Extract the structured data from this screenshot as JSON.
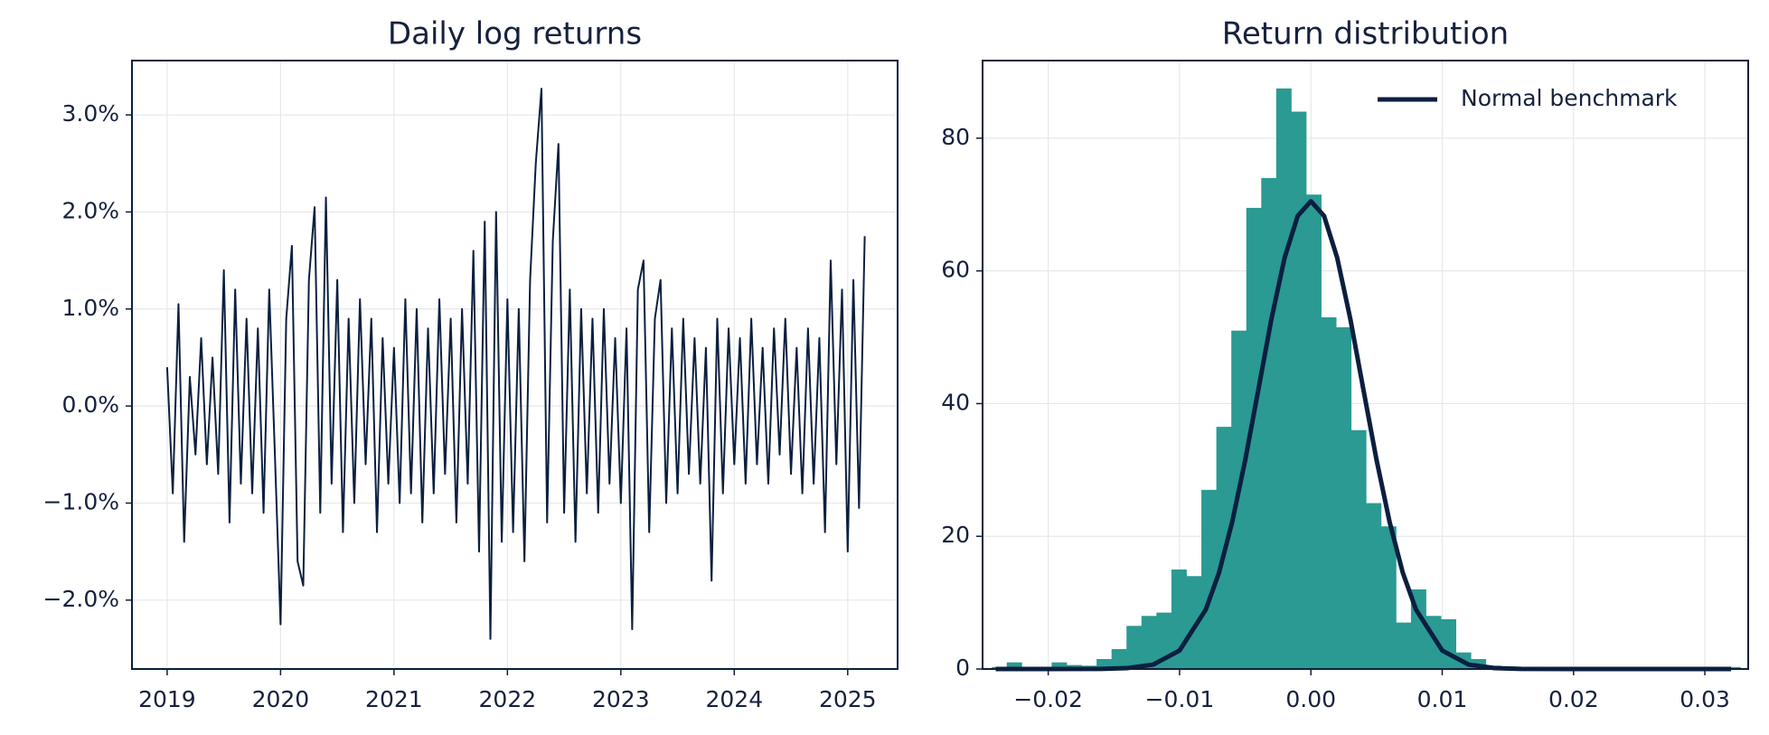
{
  "chart_data": [
    {
      "type": "line",
      "title": "Daily log returns",
      "color": "#0b1f3f",
      "x": [
        2019,
        2019.05,
        2019.1,
        2019.15,
        2019.2,
        2019.25,
        2019.3,
        2019.35,
        2019.4,
        2019.45,
        2019.5,
        2019.55,
        2019.6,
        2019.65,
        2019.7,
        2019.75,
        2019.8,
        2019.85,
        2019.9,
        2019.95,
        2020,
        2020.05,
        2020.1,
        2020.15,
        2020.2,
        2020.25,
        2020.3,
        2020.35,
        2020.4,
        2020.45,
        2020.5,
        2020.55,
        2020.6,
        2020.65,
        2020.7,
        2020.75,
        2020.8,
        2020.85,
        2020.9,
        2020.95,
        2021,
        2021.05,
        2021.1,
        2021.15,
        2021.2,
        2021.25,
        2021.3,
        2021.35,
        2021.4,
        2021.45,
        2021.5,
        2021.55,
        2021.6,
        2021.65,
        2021.7,
        2021.75,
        2021.8,
        2021.85,
        2021.9,
        2021.95,
        2022,
        2022.05,
        2022.1,
        2022.15,
        2022.2,
        2022.25,
        2022.3,
        2022.35,
        2022.4,
        2022.45,
        2022.5,
        2022.55,
        2022.6,
        2022.65,
        2022.7,
        2022.75,
        2022.8,
        2022.85,
        2022.9,
        2022.95,
        2023,
        2023.05,
        2023.1,
        2023.15,
        2023.2,
        2023.25,
        2023.3,
        2023.35,
        2023.4,
        2023.45,
        2023.5,
        2023.55,
        2023.6,
        2023.65,
        2023.7,
        2023.75,
        2023.8,
        2023.85,
        2023.9,
        2023.95,
        2024,
        2024.05,
        2024.1,
        2024.15,
        2024.2,
        2024.25,
        2024.3,
        2024.35,
        2024.4,
        2024.45,
        2024.5,
        2024.55,
        2024.6,
        2024.65,
        2024.7,
        2024.75,
        2024.8,
        2024.85,
        2024.9,
        2024.95,
        2025,
        2025.05,
        2025.1,
        2025.15
      ],
      "values": [
        0.4,
        -0.9,
        1.05,
        -1.4,
        0.3,
        -0.5,
        0.7,
        -0.6,
        0.5,
        -0.7,
        1.4,
        -1.2,
        1.2,
        -0.8,
        0.9,
        -0.9,
        0.8,
        -1.1,
        1.2,
        -0.5,
        -2.25,
        0.9,
        1.65,
        -1.6,
        -1.85,
        1.3,
        2.05,
        -1.1,
        2.15,
        -0.8,
        1.3,
        -1.3,
        0.9,
        -1.0,
        1.1,
        -0.6,
        0.9,
        -1.3,
        0.7,
        -0.8,
        0.6,
        -1.0,
        1.1,
        -0.9,
        1.0,
        -1.2,
        0.8,
        -0.9,
        1.1,
        -0.7,
        0.9,
        -1.2,
        1.0,
        -0.8,
        1.6,
        -1.5,
        1.9,
        -2.4,
        2.0,
        -1.4,
        1.1,
        -1.3,
        1.0,
        -1.6,
        1.3,
        2.5,
        3.27,
        -1.2,
        1.7,
        2.7,
        -1.1,
        1.2,
        -1.4,
        1.0,
        -0.9,
        0.9,
        -1.1,
        1.0,
        -0.8,
        0.7,
        -1.0,
        0.8,
        -2.3,
        1.2,
        1.5,
        -1.3,
        0.9,
        1.3,
        -1.0,
        0.8,
        -0.9,
        0.9,
        -0.7,
        0.7,
        -0.8,
        0.6,
        -1.8,
        0.9,
        -0.9,
        0.8,
        -0.6,
        0.7,
        -0.8,
        0.9,
        -0.6,
        0.6,
        -0.8,
        0.8,
        -0.5,
        0.9,
        -0.7,
        0.6,
        -0.9,
        0.8,
        -0.8,
        0.7,
        -1.3,
        1.5,
        -0.6,
        1.2,
        -1.5,
        1.3,
        -1.05,
        1.75
      ],
      "xlim": [
        2018.69,
        2025.44
      ],
      "xticks": [
        2019,
        2020,
        2021,
        2022,
        2023,
        2024,
        2025
      ],
      "ylim": [
        -2.71,
        3.56
      ],
      "yticks": [
        {
          "value": -2,
          "label": "−2.0%"
        },
        {
          "value": -1,
          "label": "−1.0%"
        },
        {
          "value": 0,
          "label": "0.0%"
        },
        {
          "value": 1,
          "label": "1.0%"
        },
        {
          "value": 2,
          "label": "2.0%"
        },
        {
          "value": 3,
          "label": "3.0%"
        }
      ],
      "grid": true
    },
    {
      "type": "histogram",
      "title": "Return distribution",
      "color": "#2a9a93",
      "bins": [
        -0.0243,
        -0.02316,
        -0.02202,
        -0.02088,
        -0.01974,
        -0.0186,
        -0.01746,
        -0.01632,
        -0.01518,
        -0.01404,
        -0.0129,
        -0.01176,
        -0.01062,
        -0.00948,
        -0.00834,
        -0.0072,
        -0.00606,
        -0.00492,
        -0.00378,
        -0.00264,
        -0.0015,
        -0.00036,
        0.00078,
        0.00192,
        0.00306,
        0.0042,
        0.00534,
        0.00648,
        0.00762,
        0.00876,
        0.0099,
        0.01104,
        0.01218,
        0.01332,
        0.01446,
        0.0156,
        0.01674,
        0.01788,
        0.01902,
        0.02016,
        0.0213,
        0.02244,
        0.02358,
        0.02472,
        0.02586,
        0.027,
        0.02814,
        0.02928,
        0.03042,
        0.03156,
        0.0327
      ],
      "values": [
        0.3,
        1,
        0,
        0.3,
        1,
        0.6,
        0.5,
        1.5,
        3,
        6.5,
        8,
        8.5,
        15,
        14,
        27,
        36.5,
        51,
        69.5,
        74,
        87.5,
        84,
        71.5,
        53,
        51.5,
        36,
        25,
        21.5,
        7,
        12,
        8,
        7.5,
        2.5,
        1.5,
        0.5,
        0.2,
        0,
        0.2,
        0,
        0,
        0.2,
        0,
        0.2,
        0,
        0,
        0.2,
        0,
        0.2,
        0,
        0.2,
        0.3
      ],
      "series": [
        {
          "name": "Normal benchmark",
          "color": "#0b1f3f",
          "x": [
            -0.024,
            -0.02,
            -0.016,
            -0.014,
            -0.012,
            -0.01,
            -0.008,
            -0.007,
            -0.006,
            -0.005,
            -0.004,
            -0.003,
            -0.002,
            -0.001,
            0,
            0.001,
            0.002,
            0.003,
            0.004,
            0.005,
            0.006,
            0.007,
            0.008,
            0.01,
            0.012,
            0.014,
            0.016,
            0.02,
            0.024,
            0.032
          ],
          "values": [
            0,
            0.0002,
            0.018,
            0.13,
            0.67,
            2.79,
            8.97,
            14.5,
            22.1,
            31.5,
            42.1,
            52.8,
            62,
            68.3,
            70.5,
            68.3,
            62,
            52.8,
            42.1,
            31.5,
            22.1,
            14.5,
            8.97,
            2.79,
            0.67,
            0.13,
            0.018,
            0.0002,
            0,
            0
          ]
        }
      ],
      "xlim": [
        -0.025,
        0.0333
      ],
      "xticks": [
        {
          "value": -0.02,
          "label": "−0.02"
        },
        {
          "value": -0.01,
          "label": "−0.01"
        },
        {
          "value": 0,
          "label": "0.00"
        },
        0.01,
        0.02,
        0.03
      ],
      "ylim": [
        0,
        91.7
      ],
      "yticks": [
        0,
        20,
        40,
        60,
        80
      ],
      "grid": true,
      "legend": "upper right"
    }
  ]
}
